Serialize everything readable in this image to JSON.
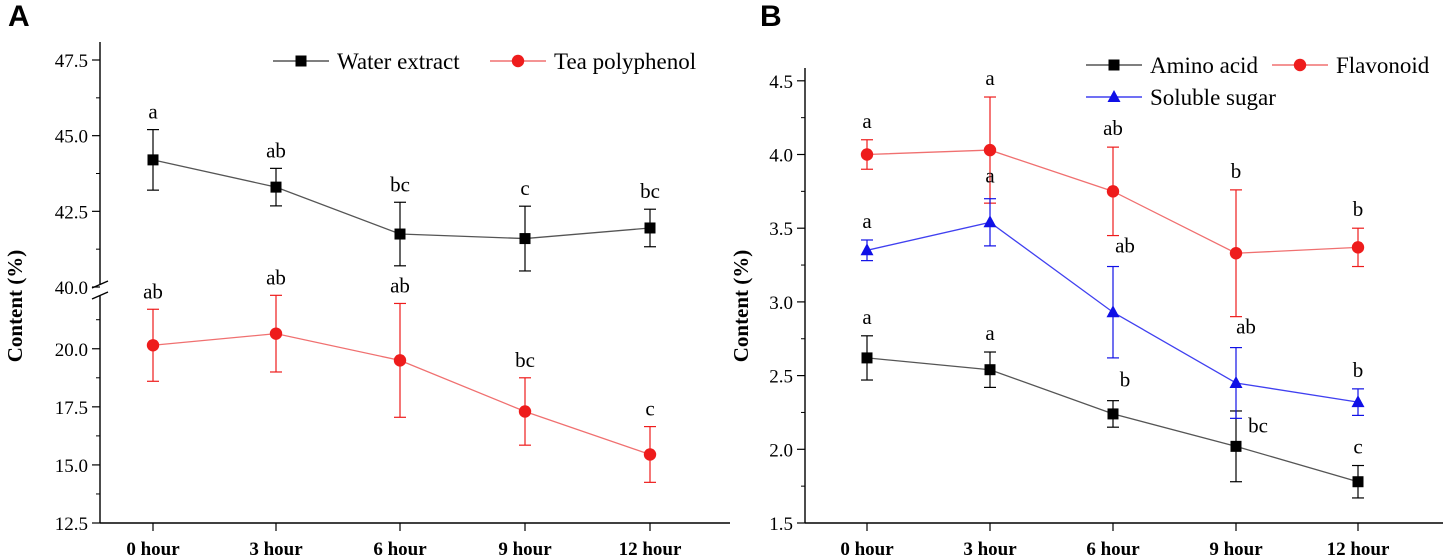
{
  "colors": {
    "axis": "#000000",
    "black_series": "#000000",
    "red_series": "#ee1c1c",
    "blue_series": "#1010e6",
    "connector_black": "#555555",
    "connector_red": "#f07070",
    "connector_blue": "#4040f0"
  },
  "chart_data": [
    {
      "panel": "A",
      "type": "line",
      "categories": [
        "0 hour",
        "3 hour",
        "6 hour",
        "9 hour",
        "12 hour"
      ],
      "ylabel": "Content (%)",
      "xlabel": "",
      "axis_break": true,
      "upper_segment": {
        "ylim": [
          40.0,
          47.5
        ],
        "ticks": [
          "40.0",
          "42.5",
          "45.0",
          "47.5"
        ]
      },
      "lower_segment": {
        "ylim": [
          12.5,
          22.4
        ],
        "ticks": [
          "12.5",
          "15.0",
          "17.5",
          "20.0"
        ]
      },
      "legend_position": "top-right",
      "series": [
        {
          "name": "Water extract",
          "color_key": "black_series",
          "marker": "square",
          "segment": "upper",
          "values": [
            44.2,
            43.3,
            41.75,
            41.6,
            41.95
          ],
          "errors": [
            1.0,
            0.62,
            1.05,
            1.07,
            0.62
          ],
          "labels": [
            "a",
            "ab",
            "bc",
            "c",
            "bc"
          ]
        },
        {
          "name": "Tea polyphenol",
          "color_key": "red_series",
          "marker": "circle",
          "segment": "lower",
          "values": [
            20.15,
            20.65,
            19.5,
            17.3,
            15.45
          ],
          "errors": [
            1.55,
            1.65,
            2.45,
            1.45,
            1.2
          ],
          "labels": [
            "ab",
            "ab",
            "ab",
            "bc",
            "c"
          ]
        }
      ]
    },
    {
      "panel": "B",
      "type": "line",
      "categories": [
        "0 hour",
        "3 hour",
        "6 hour",
        "9 hour",
        "12 hour"
      ],
      "ylabel": "Content (%)",
      "xlabel": "",
      "ylim": [
        1.5,
        4.6
      ],
      "yticks": [
        "1.5",
        "2.0",
        "2.5",
        "3.0",
        "3.5",
        "4.0",
        "4.5"
      ],
      "legend_position": "top-right",
      "series": [
        {
          "name": "Amino acid",
          "color_key": "black_series",
          "marker": "square",
          "values": [
            2.62,
            2.54,
            2.24,
            2.02,
            1.78
          ],
          "errors": [
            0.15,
            0.12,
            0.09,
            0.24,
            0.11
          ],
          "labels": [
            "a",
            "a",
            "b",
            "bc",
            "c"
          ]
        },
        {
          "name": "Flavonoid",
          "color_key": "red_series",
          "marker": "circle",
          "values": [
            4.0,
            4.03,
            3.75,
            3.33,
            3.37
          ],
          "errors": [
            0.1,
            0.36,
            0.3,
            0.43,
            0.13
          ],
          "labels": [
            "a",
            "a",
            "ab",
            "b",
            "b"
          ]
        },
        {
          "name": "Soluble sugar",
          "color_key": "blue_series",
          "marker": "triangle",
          "values": [
            3.35,
            3.54,
            2.93,
            2.45,
            2.32
          ],
          "errors": [
            0.07,
            0.16,
            0.31,
            0.24,
            0.09
          ],
          "labels": [
            "a",
            "a",
            "ab",
            "ab",
            "b"
          ]
        }
      ]
    }
  ]
}
